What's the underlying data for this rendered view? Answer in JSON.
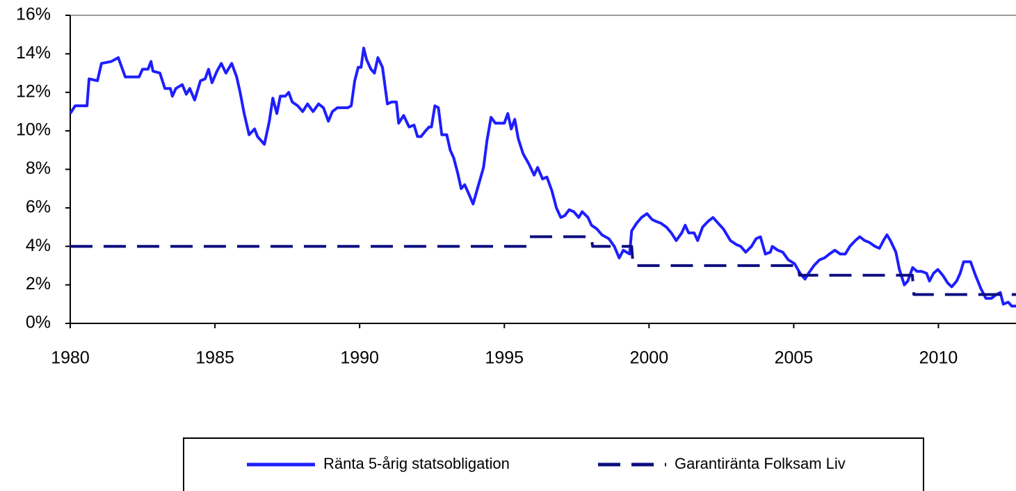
{
  "chart_data": {
    "type": "line",
    "xlim": [
      1980,
      2012.68
    ],
    "xticks": [
      1980,
      1985,
      1990,
      1995,
      2000,
      2005,
      2010
    ],
    "ylim": [
      0,
      16
    ],
    "yticks": [
      {
        "value": 0,
        "label": "0%"
      },
      {
        "value": 2,
        "label": "2%"
      },
      {
        "value": 4,
        "label": "4%"
      },
      {
        "value": 6,
        "label": "6%"
      },
      {
        "value": 8,
        "label": "8%"
      },
      {
        "value": 10,
        "label": "10%"
      },
      {
        "value": 12,
        "label": "12%"
      },
      {
        "value": 14,
        "label": "14%"
      },
      {
        "value": 16,
        "label": "16%"
      }
    ],
    "grid": false,
    "legend": "bottom",
    "series": [
      {
        "name": "Ränta 5-årig statsobligation",
        "color": "#1e1eff",
        "dash": false,
        "x": [
          1980.0,
          1980.17,
          1980.58,
          1980.65,
          1980.94,
          1981.08,
          1981.42,
          1981.66,
          1981.9,
          1982.38,
          1982.5,
          1982.69,
          1982.79,
          1982.86,
          1983.1,
          1983.27,
          1983.46,
          1983.53,
          1983.65,
          1983.87,
          1984.01,
          1984.13,
          1984.3,
          1984.5,
          1984.66,
          1984.78,
          1984.9,
          1985.07,
          1985.22,
          1985.38,
          1985.58,
          1985.75,
          1985.87,
          1986.01,
          1986.18,
          1986.37,
          1986.47,
          1986.71,
          1986.88,
          1987.0,
          1987.14,
          1987.26,
          1987.43,
          1987.55,
          1987.67,
          1987.86,
          1988.03,
          1988.2,
          1988.39,
          1988.58,
          1988.75,
          1988.92,
          1989.06,
          1989.23,
          1989.4,
          1989.59,
          1989.71,
          1989.83,
          1989.95,
          1990.05,
          1990.14,
          1990.24,
          1990.39,
          1990.51,
          1990.63,
          1990.79,
          1990.96,
          1991.11,
          1991.27,
          1991.35,
          1991.52,
          1991.71,
          1991.88,
          1992.0,
          1992.12,
          1992.28,
          1992.4,
          1992.48,
          1992.6,
          1992.72,
          1992.84,
          1993.01,
          1993.13,
          1993.25,
          1993.39,
          1993.51,
          1993.63,
          1993.75,
          1993.92,
          1994.11,
          1994.28,
          1994.4,
          1994.54,
          1994.69,
          1994.83,
          1995.0,
          1995.12,
          1995.24,
          1995.36,
          1995.48,
          1995.65,
          1995.84,
          1996.03,
          1996.15,
          1996.32,
          1996.47,
          1996.64,
          1996.8,
          1996.95,
          1997.09,
          1997.24,
          1997.4,
          1997.57,
          1997.69,
          1997.89,
          1998.01,
          1998.2,
          1998.37,
          1998.61,
          1998.8,
          1998.97,
          1999.11,
          1999.33,
          1999.4,
          1999.57,
          1999.74,
          1999.93,
          2000.1,
          2000.24,
          2000.41,
          2000.6,
          2000.77,
          2000.94,
          2001.13,
          2001.25,
          2001.37,
          2001.56,
          2001.68,
          2001.85,
          2002.04,
          2002.21,
          2002.33,
          2002.57,
          2002.81,
          2003.01,
          2003.17,
          2003.34,
          2003.54,
          2003.7,
          2003.85,
          2004.02,
          2004.19,
          2004.26,
          2004.45,
          2004.62,
          2004.81,
          2005.03,
          2005.22,
          2005.39,
          2005.51,
          2005.7,
          2005.89,
          2006.06,
          2006.23,
          2006.42,
          2006.61,
          2006.78,
          2006.94,
          2007.13,
          2007.28,
          2007.45,
          2007.62,
          2007.81,
          2007.96,
          2008.1,
          2008.22,
          2008.34,
          2008.53,
          2008.65,
          2008.82,
          2008.94,
          2009.11,
          2009.26,
          2009.42,
          2009.59,
          2009.69,
          2009.83,
          2009.98,
          2010.15,
          2010.32,
          2010.46,
          2010.63,
          2010.75,
          2010.87,
          2011.11,
          2011.28,
          2011.47,
          2011.64,
          2011.83,
          2012.0,
          2012.14,
          2012.24,
          2012.41,
          2012.53,
          2012.68
        ],
        "values": [
          10.9,
          11.3,
          11.3,
          12.7,
          12.6,
          13.5,
          13.6,
          13.8,
          12.8,
          12.8,
          13.2,
          13.2,
          13.6,
          13.1,
          13.0,
          12.2,
          12.2,
          11.8,
          12.2,
          12.4,
          11.9,
          12.2,
          11.6,
          12.6,
          12.7,
          13.2,
          12.5,
          13.1,
          13.5,
          13.0,
          13.5,
          12.8,
          12.0,
          10.9,
          9.8,
          10.1,
          9.7,
          9.3,
          10.5,
          11.7,
          10.9,
          11.8,
          11.8,
          12.0,
          11.5,
          11.3,
          11.0,
          11.4,
          11.0,
          11.4,
          11.2,
          10.5,
          11.0,
          11.2,
          11.2,
          11.2,
          11.3,
          12.6,
          13.3,
          13.3,
          14.3,
          13.7,
          13.2,
          13.0,
          13.8,
          13.3,
          11.4,
          11.5,
          11.5,
          10.4,
          10.8,
          10.2,
          10.3,
          9.7,
          9.7,
          10.0,
          10.2,
          10.2,
          11.3,
          11.2,
          9.8,
          9.8,
          9.0,
          8.6,
          7.8,
          7.0,
          7.2,
          6.8,
          6.2,
          7.2,
          8.1,
          9.5,
          10.7,
          10.4,
          10.4,
          10.4,
          10.9,
          10.1,
          10.6,
          9.6,
          8.8,
          8.3,
          7.7,
          8.1,
          7.5,
          7.6,
          6.9,
          6.0,
          5.5,
          5.6,
          5.9,
          5.8,
          5.5,
          5.8,
          5.5,
          5.1,
          4.9,
          4.6,
          4.4,
          4.0,
          3.4,
          3.8,
          3.6,
          4.8,
          5.2,
          5.5,
          5.7,
          5.4,
          5.3,
          5.2,
          5.0,
          4.7,
          4.3,
          4.7,
          5.1,
          4.7,
          4.7,
          4.3,
          5.0,
          5.3,
          5.5,
          5.3,
          4.9,
          4.3,
          4.1,
          4.0,
          3.7,
          4.0,
          4.4,
          4.5,
          3.6,
          3.7,
          4.0,
          3.8,
          3.7,
          3.3,
          3.1,
          2.6,
          2.3,
          2.6,
          3.0,
          3.3,
          3.4,
          3.6,
          3.8,
          3.6,
          3.6,
          4.0,
          4.3,
          4.5,
          4.3,
          4.2,
          4.0,
          3.9,
          4.3,
          4.6,
          4.3,
          3.7,
          2.8,
          2.0,
          2.2,
          2.9,
          2.7,
          2.7,
          2.6,
          2.2,
          2.6,
          2.8,
          2.5,
          2.1,
          1.9,
          2.2,
          2.6,
          3.2,
          3.2,
          2.5,
          1.8,
          1.3,
          1.3,
          1.5,
          1.6,
          1.0,
          1.1,
          0.9,
          0.9
        ]
      },
      {
        "name": "Garantiränta Folksam Liv",
        "color": "#0c0c80",
        "dash": true,
        "x": [
          1980,
          1995.77,
          1995.85,
          1998.0,
          1998.05,
          1999.4,
          1999.45,
          2005.15,
          2005.2,
          2009.1,
          2009.15,
          2012.68
        ],
        "values": [
          4,
          4,
          4.5,
          4.5,
          4,
          4,
          3,
          3,
          2.5,
          2.5,
          1.5,
          1.5
        ]
      }
    ]
  }
}
